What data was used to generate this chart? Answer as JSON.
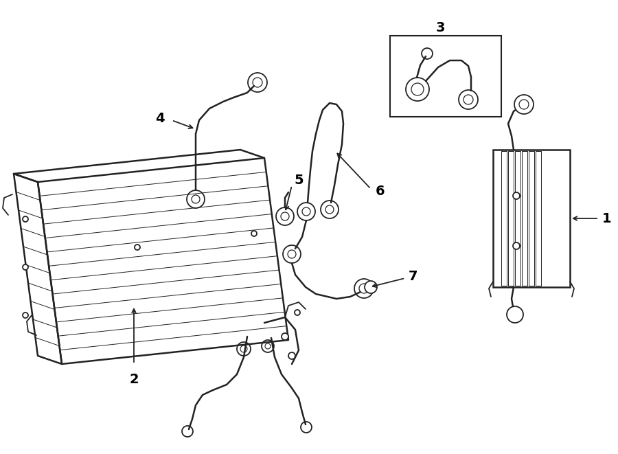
{
  "bg_color": "#ffffff",
  "line_color": "#222222",
  "label_color": "#000000",
  "lw_main": 1.3,
  "lw_thin": 0.8,
  "lw_thick": 1.8
}
